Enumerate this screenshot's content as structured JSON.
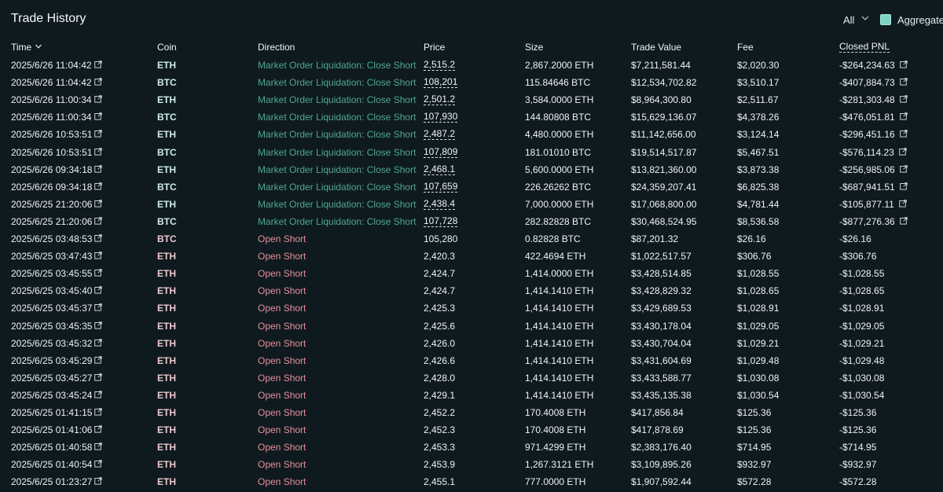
{
  "header": {
    "title": "Trade History",
    "filter_value": "All",
    "aggregate_label": "Aggregate",
    "aggregate_checked": true
  },
  "columns": {
    "time": "Time",
    "coin": "Coin",
    "direction": "Direction",
    "price": "Price",
    "size": "Size",
    "trade_value": "Trade Value",
    "fee": "Fee",
    "closed_pnl": "Closed PNL"
  },
  "rows": [
    {
      "time": "2025/6/26 11:04:42",
      "coin": "ETH",
      "direction": "Market Order Liquidation: Close Short",
      "price": "2,515.2",
      "size": "2,867.2000 ETH",
      "value": "$7,211,581.44",
      "fee": "$2,020.30",
      "pnl": "-$264,234.63",
      "liquidation": true
    },
    {
      "time": "2025/6/26 11:04:42",
      "coin": "BTC",
      "direction": "Market Order Liquidation: Close Short",
      "price": "108,201",
      "size": "115.84646 BTC",
      "value": "$12,534,702.82",
      "fee": "$3,510.17",
      "pnl": "-$407,884.73",
      "liquidation": true
    },
    {
      "time": "2025/6/26 11:00:34",
      "coin": "ETH",
      "direction": "Market Order Liquidation: Close Short",
      "price": "2,501.2",
      "size": "3,584.0000 ETH",
      "value": "$8,964,300.80",
      "fee": "$2,511.67",
      "pnl": "-$281,303.48",
      "liquidation": true
    },
    {
      "time": "2025/6/26 11:00:34",
      "coin": "BTC",
      "direction": "Market Order Liquidation: Close Short",
      "price": "107,930",
      "size": "144.80808 BTC",
      "value": "$15,629,136.07",
      "fee": "$4,378.26",
      "pnl": "-$476,051.81",
      "liquidation": true
    },
    {
      "time": "2025/6/26 10:53:51",
      "coin": "ETH",
      "direction": "Market Order Liquidation: Close Short",
      "price": "2,487.2",
      "size": "4,480.0000 ETH",
      "value": "$11,142,656.00",
      "fee": "$3,124.14",
      "pnl": "-$296,451.16",
      "liquidation": true
    },
    {
      "time": "2025/6/26 10:53:51",
      "coin": "BTC",
      "direction": "Market Order Liquidation: Close Short",
      "price": "107,809",
      "size": "181.01010 BTC",
      "value": "$19,514,517.87",
      "fee": "$5,467.51",
      "pnl": "-$576,114.23",
      "liquidation": true
    },
    {
      "time": "2025/6/26 09:34:18",
      "coin": "ETH",
      "direction": "Market Order Liquidation: Close Short",
      "price": "2,468.1",
      "size": "5,600.0000 ETH",
      "value": "$13,821,360.00",
      "fee": "$3,873.38",
      "pnl": "-$256,985.06",
      "liquidation": true
    },
    {
      "time": "2025/6/26 09:34:18",
      "coin": "BTC",
      "direction": "Market Order Liquidation: Close Short",
      "price": "107,659",
      "size": "226.26262 BTC",
      "value": "$24,359,207.41",
      "fee": "$6,825.38",
      "pnl": "-$687,941.51",
      "liquidation": true
    },
    {
      "time": "2025/6/25 21:20:06",
      "coin": "ETH",
      "direction": "Market Order Liquidation: Close Short",
      "price": "2,438.4",
      "size": "7,000.0000 ETH",
      "value": "$17,068,800.00",
      "fee": "$4,781.44",
      "pnl": "-$105,877.11",
      "liquidation": true
    },
    {
      "time": "2025/6/25 21:20:06",
      "coin": "BTC",
      "direction": "Market Order Liquidation: Close Short",
      "price": "107,728",
      "size": "282.82828 BTC",
      "value": "$30,468,524.95",
      "fee": "$8,536.58",
      "pnl": "-$877,276.36",
      "liquidation": true
    },
    {
      "time": "2025/6/25 03:48:53",
      "coin": "BTC",
      "direction": "Open Short",
      "price": "105,280",
      "size": "0.82828 BTC",
      "value": "$87,201.32",
      "fee": "$26.16",
      "pnl": "-$26.16",
      "liquidation": false
    },
    {
      "time": "2025/6/25 03:47:43",
      "coin": "ETH",
      "direction": "Open Short",
      "price": "2,420.3",
      "size": "422.4694 ETH",
      "value": "$1,022,517.57",
      "fee": "$306.76",
      "pnl": "-$306.76",
      "liquidation": false
    },
    {
      "time": "2025/6/25 03:45:55",
      "coin": "ETH",
      "direction": "Open Short",
      "price": "2,424.7",
      "size": "1,414.0000 ETH",
      "value": "$3,428,514.85",
      "fee": "$1,028.55",
      "pnl": "-$1,028.55",
      "liquidation": false
    },
    {
      "time": "2025/6/25 03:45:40",
      "coin": "ETH",
      "direction": "Open Short",
      "price": "2,424.7",
      "size": "1,414.1410 ETH",
      "value": "$3,428,829.32",
      "fee": "$1,028.65",
      "pnl": "-$1,028.65",
      "liquidation": false
    },
    {
      "time": "2025/6/25 03:45:37",
      "coin": "ETH",
      "direction": "Open Short",
      "price": "2,425.3",
      "size": "1,414.1410 ETH",
      "value": "$3,429,689.53",
      "fee": "$1,028.91",
      "pnl": "-$1,028.91",
      "liquidation": false
    },
    {
      "time": "2025/6/25 03:45:35",
      "coin": "ETH",
      "direction": "Open Short",
      "price": "2,425.6",
      "size": "1,414.1410 ETH",
      "value": "$3,430,178.04",
      "fee": "$1,029.05",
      "pnl": "-$1,029.05",
      "liquidation": false
    },
    {
      "time": "2025/6/25 03:45:32",
      "coin": "ETH",
      "direction": "Open Short",
      "price": "2,426.0",
      "size": "1,414.1410 ETH",
      "value": "$3,430,704.04",
      "fee": "$1,029.21",
      "pnl": "-$1,029.21",
      "liquidation": false
    },
    {
      "time": "2025/6/25 03:45:29",
      "coin": "ETH",
      "direction": "Open Short",
      "price": "2,426.6",
      "size": "1,414.1410 ETH",
      "value": "$3,431,604.69",
      "fee": "$1,029.48",
      "pnl": "-$1,029.48",
      "liquidation": false
    },
    {
      "time": "2025/6/25 03:45:27",
      "coin": "ETH",
      "direction": "Open Short",
      "price": "2,428.0",
      "size": "1,414.1410 ETH",
      "value": "$3,433,588.77",
      "fee": "$1,030.08",
      "pnl": "-$1,030.08",
      "liquidation": false
    },
    {
      "time": "2025/6/25 03:45:24",
      "coin": "ETH",
      "direction": "Open Short",
      "price": "2,429.1",
      "size": "1,414.1410 ETH",
      "value": "$3,435,135.38",
      "fee": "$1,030.54",
      "pnl": "-$1,030.54",
      "liquidation": false
    },
    {
      "time": "2025/6/25 01:41:15",
      "coin": "ETH",
      "direction": "Open Short",
      "price": "2,452.2",
      "size": "170.4008 ETH",
      "value": "$417,856.84",
      "fee": "$125.36",
      "pnl": "-$125.36",
      "liquidation": false
    },
    {
      "time": "2025/6/25 01:41:06",
      "coin": "ETH",
      "direction": "Open Short",
      "price": "2,452.3",
      "size": "170.4008 ETH",
      "value": "$417,878.69",
      "fee": "$125.36",
      "pnl": "-$125.36",
      "liquidation": false
    },
    {
      "time": "2025/6/25 01:40:58",
      "coin": "ETH",
      "direction": "Open Short",
      "price": "2,453.3",
      "size": "971.4299 ETH",
      "value": "$2,383,176.40",
      "fee": "$714.95",
      "pnl": "-$714.95",
      "liquidation": false
    },
    {
      "time": "2025/6/25 01:40:54",
      "coin": "ETH",
      "direction": "Open Short",
      "price": "2,453.9",
      "size": "1,267.3121 ETH",
      "value": "$3,109,895.26",
      "fee": "$932.97",
      "pnl": "-$932.97",
      "liquidation": false
    },
    {
      "time": "2025/6/25 01:23:27",
      "coin": "ETH",
      "direction": "Open Short",
      "price": "2,455.1",
      "size": "777.0000 ETH",
      "value": "$1,907,592.44",
      "fee": "$572.28",
      "pnl": "-$572.28",
      "liquidation": false
    }
  ],
  "icons": {
    "external_link": "external-link-icon",
    "sort": "chevron-down-icon",
    "dropdown": "chevron-down-icon"
  },
  "colors": {
    "background": "#0f1a1f",
    "liquidation_text": "#4fa891",
    "open_short_text": "#e68f9b",
    "accent": "#7fd3c4"
  }
}
